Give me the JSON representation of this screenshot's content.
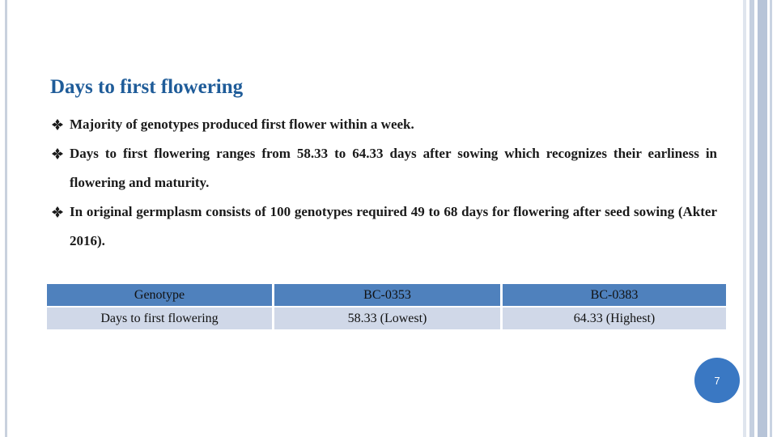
{
  "header": {
    "title": "Days to first flowering"
  },
  "bullets": [
    "Majority of genotypes produced first flower within a week.",
    "Days to first flowering ranges from 58.33 to 64.33 days after sowing which recognizes their earliness in flowering and maturity.",
    "In original germplasm consists of 100 genotypes required 49 to 68 days for flowering after seed sowing (Akter 2016)."
  ],
  "table": {
    "header": [
      "Genotype",
      "BC-0353",
      "BC-0383"
    ],
    "rows": [
      [
        "Days to first flowering",
        "58.33 (Lowest)",
        "64.33 (Highest)"
      ]
    ]
  },
  "page_number": "7"
}
